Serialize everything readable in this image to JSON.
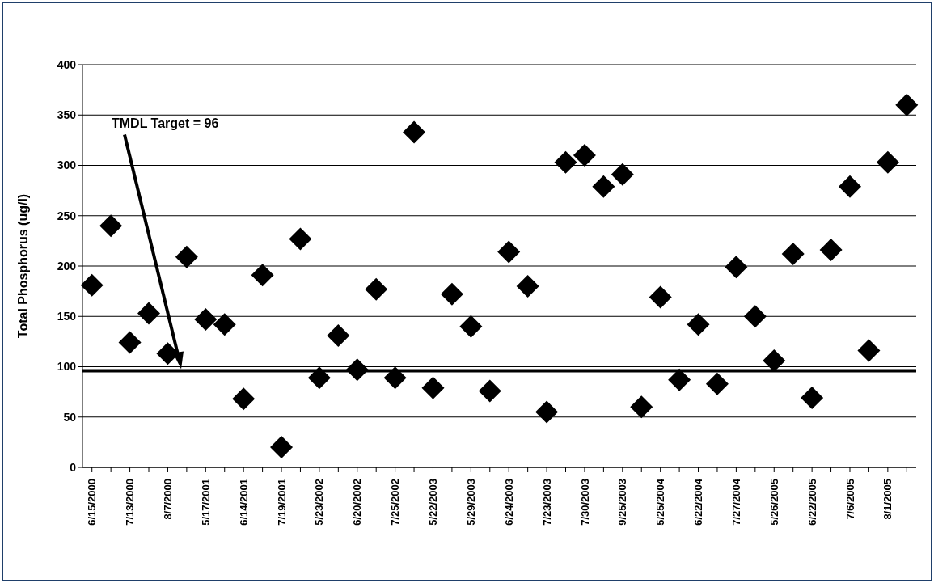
{
  "chart_data": {
    "type": "scatter",
    "ylabel": "Total Phosphorus (ug/l)",
    "categories": [
      "6/15/2000",
      null,
      "7/13/2000",
      null,
      "8/7/2000",
      null,
      "5/17/2001",
      null,
      "6/14/2001",
      null,
      "7/19/2001",
      null,
      "5/23/2002",
      null,
      "6/20/2002",
      null,
      "7/25/2002",
      null,
      "5/22/2003",
      null,
      "5/29/2003",
      null,
      "6/24/2003",
      null,
      "7/23/2003",
      null,
      "7/30/2003",
      null,
      "9/25/2003",
      null,
      "5/25/2004",
      null,
      "6/22/2004",
      null,
      "7/27/2004",
      null,
      "5/26/2005",
      null,
      "6/22/2005",
      null,
      "7/6/2005",
      null,
      "8/1/2005",
      null
    ],
    "series": [
      {
        "color": "#000000",
        "values": [
          181,
          240,
          124,
          153,
          113,
          209,
          147,
          142,
          68,
          191,
          20,
          227,
          89,
          131,
          97,
          177,
          89,
          333,
          79,
          172,
          140,
          76,
          214,
          180,
          55,
          303,
          310,
          279,
          291,
          60,
          169,
          87,
          142,
          83,
          199,
          150,
          106,
          212,
          69,
          216,
          279,
          116,
          303,
          360
        ]
      }
    ],
    "ylim": [
      0,
      400
    ],
    "yticks": [
      0,
      50,
      100,
      150,
      200,
      250,
      300,
      350,
      400
    ],
    "grid": "y",
    "legend": false,
    "marker": "diamond",
    "ref_lines": [
      {
        "axis": "y",
        "value": 96,
        "label": "TMDL Target = 96",
        "color": "#000000",
        "line_style": "solid"
      }
    ]
  }
}
